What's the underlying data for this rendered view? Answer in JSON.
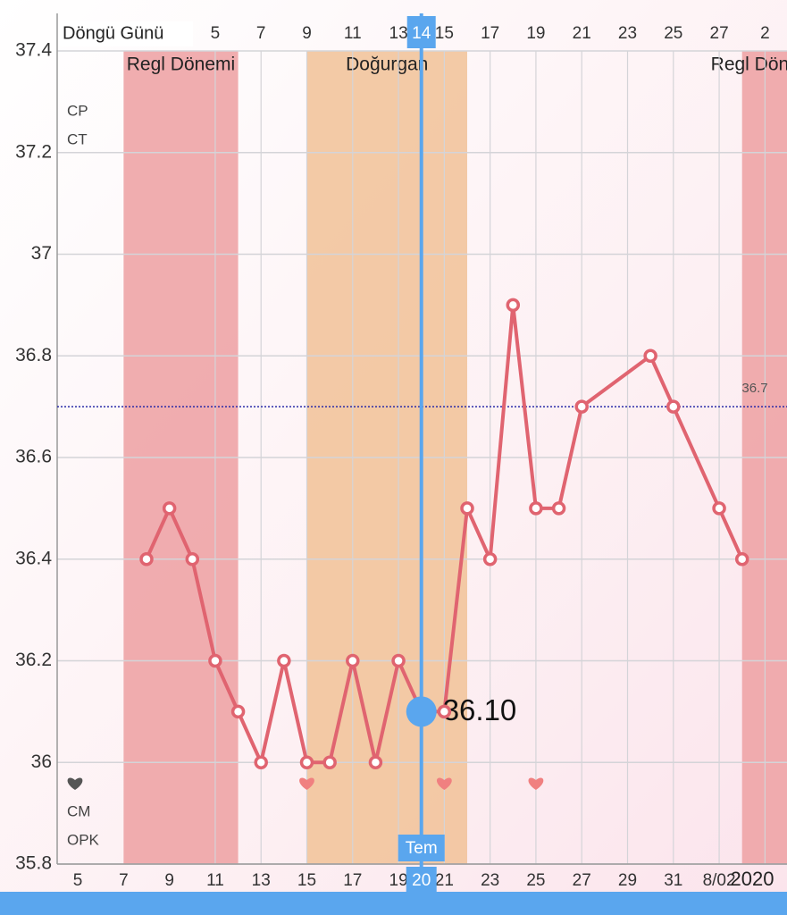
{
  "chart_data": {
    "type": "line",
    "axis_title": "Döngü Günü",
    "x": [
      2,
      3,
      4,
      5,
      6,
      7,
      8,
      9,
      10,
      11,
      12,
      13,
      14,
      15,
      16,
      17,
      18,
      19,
      20,
      21,
      24,
      25,
      27,
      28
    ],
    "series": [
      {
        "color": "#e06470",
        "values": [
          36.4,
          36.5,
          36.4,
          36.2,
          36.1,
          36.0,
          36.2,
          36.0,
          36.0,
          36.2,
          36.0,
          36.2,
          36.1,
          36.1,
          36.5,
          36.4,
          36.9,
          36.5,
          36.5,
          36.7,
          36.8,
          36.7,
          36.5,
          36.4
        ]
      }
    ],
    "xlim": [
      -1.9,
      30
    ],
    "ylim": [
      35.8,
      37.4
    ],
    "xticks": [
      5,
      7,
      9,
      11,
      13,
      14,
      15,
      17,
      19,
      21,
      23,
      25,
      27,
      {
        "value": 29,
        "label": "2"
      }
    ],
    "date_ticks": [
      {
        "value": -1,
        "label": "5"
      },
      {
        "value": 1,
        "label": "7"
      },
      {
        "value": 3,
        "label": "9"
      },
      {
        "value": 5,
        "label": "11"
      },
      {
        "value": 7,
        "label": "13"
      },
      {
        "value": 9,
        "label": "15"
      },
      {
        "value": 11,
        "label": "17"
      },
      {
        "value": 13,
        "label": "19"
      },
      {
        "value": 15,
        "label": "21"
      },
      {
        "value": 17,
        "label": "23"
      },
      {
        "value": 19,
        "label": "25"
      },
      {
        "value": 21,
        "label": "27"
      },
      {
        "value": 23,
        "label": "29"
      },
      {
        "value": 25,
        "label": "31"
      },
      {
        "value": 27,
        "label": "8/02"
      }
    ],
    "year_label": "2020",
    "yticks": [
      {
        "value": 37.4,
        "label": "37.4"
      },
      {
        "value": 37.2,
        "label": "37.2"
      },
      37,
      {
        "value": 36.8,
        "label": "36.8"
      },
      {
        "value": 36.6,
        "label": "36.6"
      },
      {
        "value": 36.4,
        "label": "36.4"
      },
      {
        "value": 36.2,
        "label": "36.2"
      },
      36,
      {
        "value": 35.8,
        "label": "35.8"
      }
    ],
    "grid": true,
    "bands": [
      {
        "start": 1,
        "end": 6,
        "label": "Regl Dönemi",
        "color": "#eea4a6"
      },
      {
        "start": 9,
        "end": 16,
        "label": "Doğurgan",
        "color": "#f2c49c"
      },
      {
        "start": 28,
        "end": 30,
        "label": "Regl Dönemi",
        "color": "#eea4a6"
      }
    ],
    "coverline": {
      "value": 36.7,
      "label": "36.7",
      "color": "#2a2aa8"
    },
    "row_labels": [
      "CP",
      "CT",
      "CM",
      "OPK"
    ],
    "hearts": {
      "x": [
        9,
        15,
        19
      ],
      "color": "#f08080"
    },
    "selected": {
      "x": 14,
      "label": "36.10",
      "month_label": "Tem",
      "date_label": "20",
      "color": "#5aa6ee"
    }
  }
}
